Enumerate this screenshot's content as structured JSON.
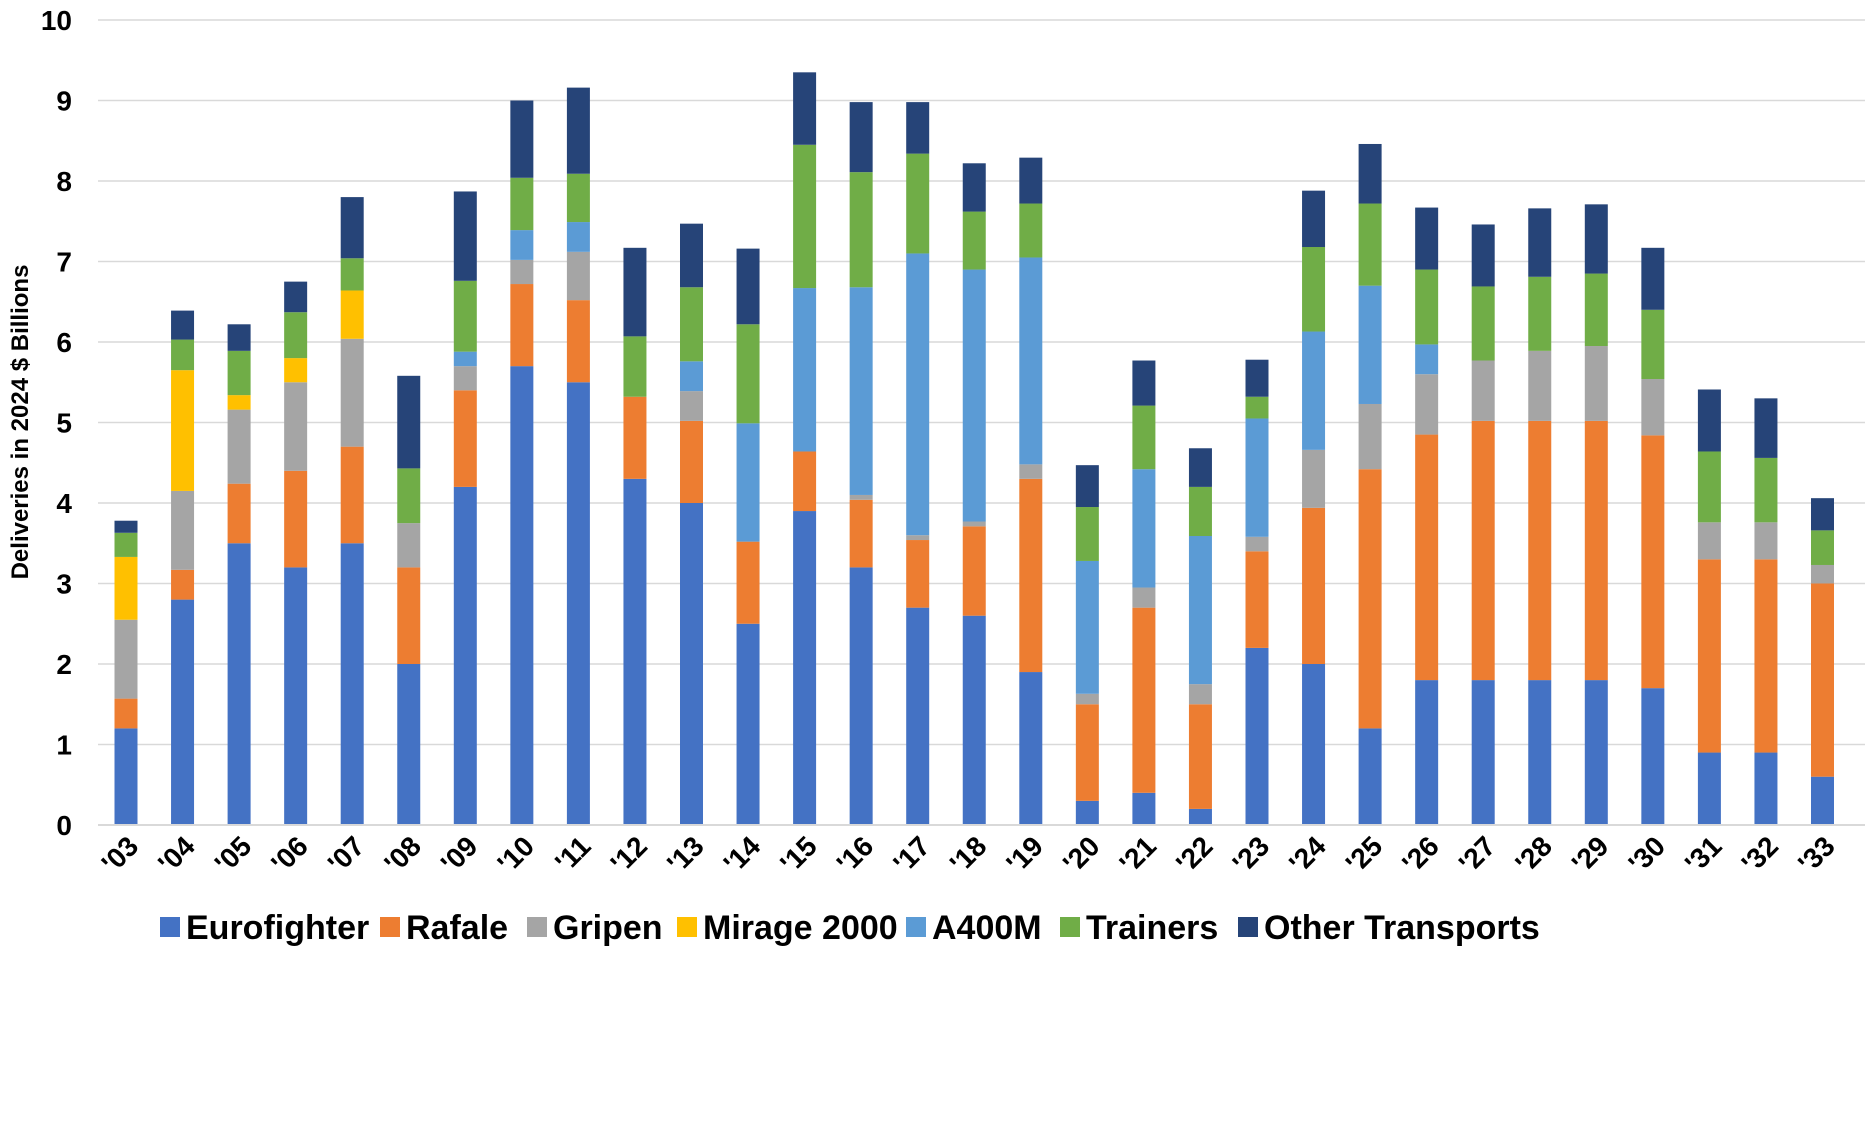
{
  "chart_data": {
    "type": "bar",
    "stacked": true,
    "title": "",
    "xlabel": "",
    "ylabel": "Deliveries in 2024 $ Billions",
    "ylim": [
      0,
      10
    ],
    "yticks": [
      0,
      1,
      2,
      3,
      4,
      5,
      6,
      7,
      8,
      9,
      10
    ],
    "grid": "horizontal",
    "legend_position": "bottom",
    "categories": [
      "'03",
      "'04",
      "'05",
      "'06",
      "'07",
      "'08",
      "'09",
      "'10",
      "'11",
      "'12",
      "'13",
      "'14",
      "'15",
      "'16",
      "'17",
      "'18",
      "'19",
      "'20",
      "'21",
      "'22",
      "'23",
      "'24",
      "'25",
      "'26",
      "'27",
      "'28",
      "'29",
      "'30",
      "'31",
      "'32",
      "'33"
    ],
    "series": [
      {
        "name": "Eurofighter",
        "color": "#4472C4",
        "values": [
          1.2,
          2.8,
          3.5,
          3.2,
          3.5,
          2.0,
          4.2,
          5.7,
          5.5,
          4.3,
          4.0,
          2.5,
          3.9,
          3.2,
          2.7,
          2.6,
          1.9,
          0.3,
          0.4,
          0.2,
          2.2,
          2.0,
          1.2,
          1.8,
          1.8,
          1.8,
          1.8,
          1.7,
          0.9,
          0.9,
          0.6
        ]
      },
      {
        "name": "Rafale",
        "color": "#ED7D31",
        "values": [
          0.37,
          0.37,
          0.74,
          1.2,
          1.2,
          1.2,
          1.2,
          1.02,
          1.02,
          1.02,
          1.02,
          1.02,
          0.74,
          0.84,
          0.84,
          1.11,
          2.4,
          1.2,
          2.3,
          1.3,
          1.2,
          1.94,
          3.22,
          3.05,
          3.22,
          3.22,
          3.22,
          3.14,
          2.4,
          2.4,
          2.4
        ]
      },
      {
        "name": "Gripen",
        "color": "#A5A5A5",
        "values": [
          0.98,
          0.98,
          0.92,
          1.1,
          1.34,
          0.55,
          0.3,
          0.3,
          0.6,
          0.0,
          0.37,
          0.0,
          0.0,
          0.06,
          0.06,
          0.06,
          0.18,
          0.13,
          0.25,
          0.25,
          0.18,
          0.72,
          0.81,
          0.75,
          0.75,
          0.87,
          0.93,
          0.7,
          0.46,
          0.46,
          0.23
        ]
      },
      {
        "name": "Mirage 2000",
        "color": "#FFC000",
        "values": [
          0.78,
          1.5,
          0.18,
          0.3,
          0.6,
          0.0,
          0.0,
          0.0,
          0.0,
          0.0,
          0.0,
          0.0,
          0.0,
          0.0,
          0.0,
          0.0,
          0.0,
          0.0,
          0.0,
          0.0,
          0.0,
          0.0,
          0.0,
          0.0,
          0.0,
          0.0,
          0.0,
          0.0,
          0.0,
          0.0,
          0.0
        ]
      },
      {
        "name": "A400M",
        "color": "#5B9BD5",
        "values": [
          0.0,
          0.0,
          0.0,
          0.0,
          0.0,
          0.0,
          0.18,
          0.37,
          0.37,
          0.0,
          0.37,
          1.47,
          2.03,
          2.58,
          3.5,
          3.13,
          2.57,
          1.65,
          1.47,
          1.84,
          1.47,
          1.47,
          1.47,
          0.37,
          0.0,
          0.0,
          0.0,
          0.0,
          0.0,
          0.0,
          0.0
        ]
      },
      {
        "name": "Trainers",
        "color": "#70AD47",
        "values": [
          0.3,
          0.38,
          0.55,
          0.57,
          0.4,
          0.68,
          0.88,
          0.65,
          0.6,
          0.75,
          0.92,
          1.23,
          1.78,
          1.43,
          1.24,
          0.72,
          0.67,
          0.67,
          0.79,
          0.61,
          0.27,
          1.05,
          1.02,
          0.93,
          0.92,
          0.92,
          0.9,
          0.86,
          0.88,
          0.8,
          0.43
        ]
      },
      {
        "name": "Other Transports",
        "color": "#264478",
        "values": [
          0.15,
          0.36,
          0.33,
          0.38,
          0.76,
          1.15,
          1.11,
          0.96,
          1.07,
          1.1,
          0.79,
          0.94,
          0.9,
          0.87,
          0.64,
          0.6,
          0.57,
          0.52,
          0.56,
          0.48,
          0.46,
          0.7,
          0.74,
          0.77,
          0.77,
          0.85,
          0.86,
          0.77,
          0.77,
          0.74,
          0.4
        ]
      }
    ]
  }
}
